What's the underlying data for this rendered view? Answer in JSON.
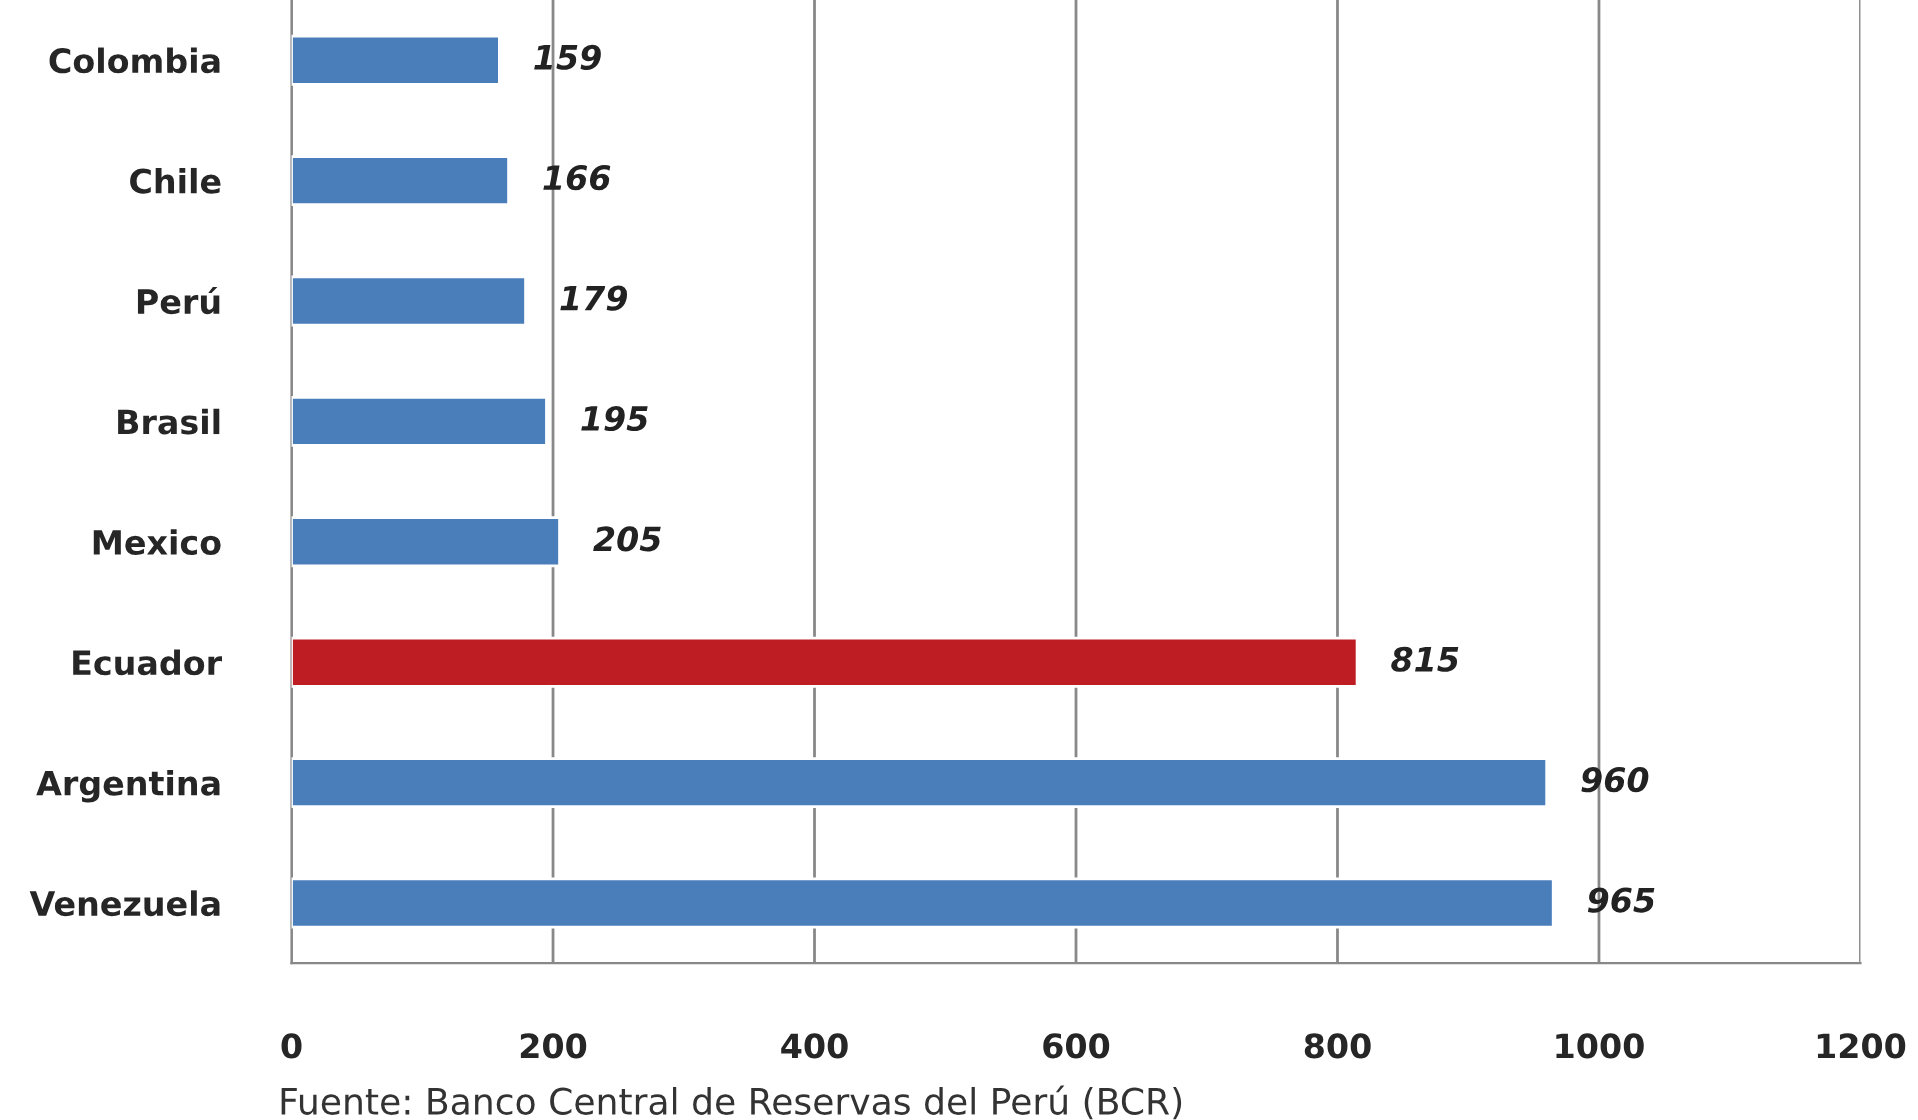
{
  "chart_data": {
    "type": "bar",
    "orientation": "horizontal",
    "categories": [
      "Colombia",
      "Chile",
      "Perú",
      "Brasil",
      "Mexico",
      "Ecuador",
      "Argentina",
      "Venezuela"
    ],
    "values": [
      159,
      166,
      179,
      195,
      205,
      815,
      960,
      965
    ],
    "colors": [
      "#4a7ebb",
      "#4a7ebb",
      "#4a7ebb",
      "#4a7ebb",
      "#4a7ebb",
      "#be1e23",
      "#4a7ebb",
      "#4a7ebb"
    ],
    "xlim": [
      0,
      1200
    ],
    "xticks": [
      0,
      200,
      400,
      600,
      800,
      1000,
      1200
    ],
    "grid": "x",
    "data_labels": true,
    "legend": false,
    "annotations": [
      "Fuente: Banco Central de Reservas del Perú (BCR)"
    ]
  }
}
